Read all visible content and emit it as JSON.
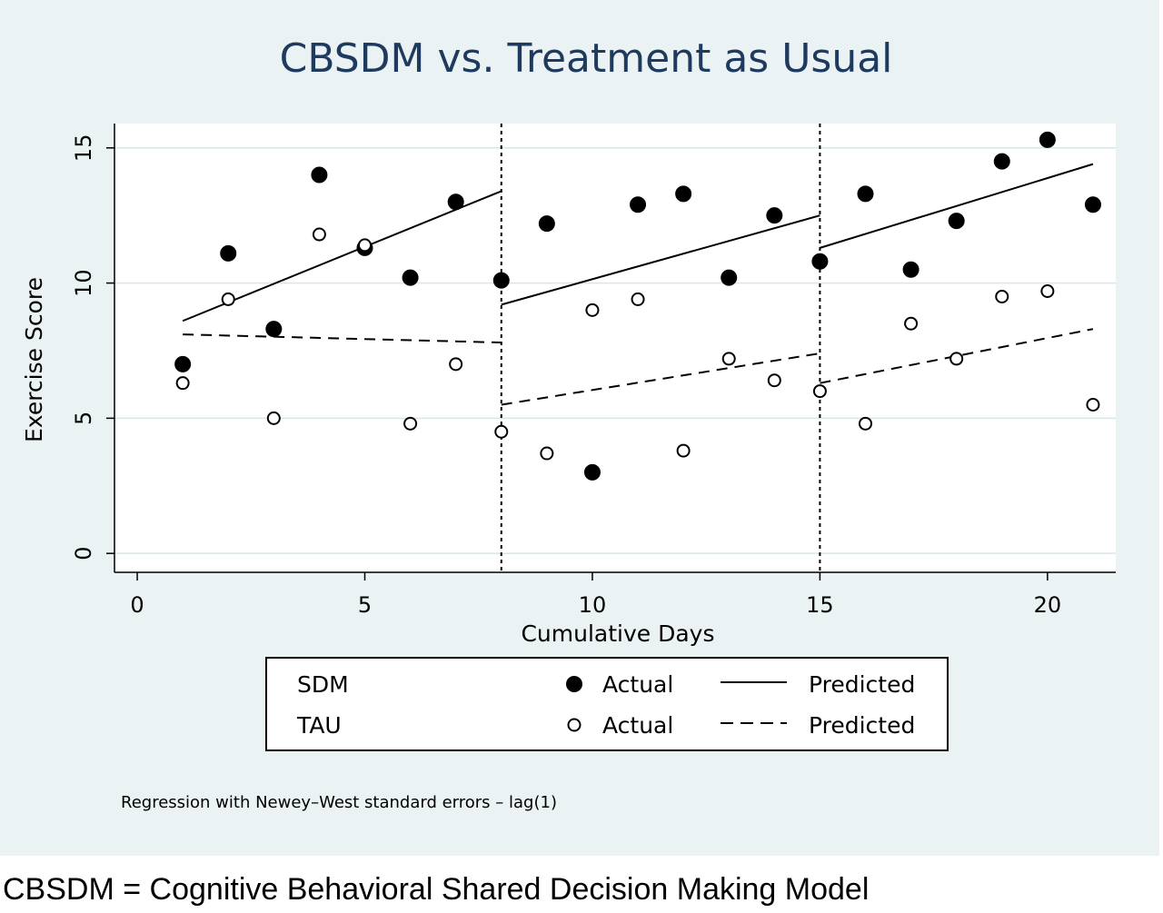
{
  "chart_data": {
    "type": "scatter",
    "title": "CBSDM vs. Treatment as Usual",
    "xlabel": "Cumulative Days",
    "ylabel": "Exercise Score",
    "xlim": [
      -0.5,
      21.5
    ],
    "ylim": [
      -0.7,
      15.9
    ],
    "xticks": [
      0,
      5,
      10,
      15,
      20
    ],
    "yticks": [
      0,
      5,
      10,
      15
    ],
    "grid": "horizontal",
    "phase_boundaries": [
      8,
      15
    ],
    "series": [
      {
        "name": "SDM",
        "kind": "Actual",
        "marker": "filled",
        "x": [
          1,
          2,
          3,
          4,
          5,
          6,
          7,
          8,
          9,
          10,
          11,
          12,
          13,
          14,
          15,
          16,
          17,
          18,
          19,
          20,
          21
        ],
        "y": [
          7.0,
          11.1,
          8.3,
          14.0,
          11.3,
          10.2,
          13.0,
          10.1,
          12.2,
          3.0,
          12.9,
          13.3,
          10.2,
          12.5,
          10.8,
          13.3,
          10.5,
          12.3,
          14.5,
          15.3,
          12.9
        ]
      },
      {
        "name": "TAU",
        "kind": "Actual",
        "marker": "hollow",
        "x": [
          1,
          2,
          3,
          4,
          5,
          6,
          7,
          8,
          9,
          10,
          11,
          12,
          13,
          14,
          15,
          16,
          17,
          18,
          19,
          20,
          21
        ],
        "y": [
          6.3,
          9.4,
          5.0,
          11.8,
          11.4,
          4.8,
          7.0,
          4.5,
          3.7,
          9.0,
          9.4,
          3.8,
          7.2,
          6.4,
          6.0,
          4.8,
          8.5,
          7.2,
          9.5,
          9.7,
          5.5
        ]
      },
      {
        "name": "SDM",
        "kind": "Predicted",
        "line": "solid",
        "segments": [
          [
            [
              1,
              8.6
            ],
            [
              8,
              13.4
            ]
          ],
          [
            [
              8,
              9.2
            ],
            [
              15,
              12.5
            ]
          ],
          [
            [
              15,
              11.3
            ],
            [
              21,
              14.4
            ]
          ]
        ]
      },
      {
        "name": "TAU",
        "kind": "Predicted",
        "line": "dashed",
        "segments": [
          [
            [
              1,
              8.1
            ],
            [
              8,
              7.8
            ]
          ],
          [
            [
              8,
              5.5
            ],
            [
              15,
              7.4
            ]
          ],
          [
            [
              15,
              6.3
            ],
            [
              21,
              8.3
            ]
          ]
        ]
      }
    ],
    "legend": {
      "placement": "bottom",
      "rows": [
        {
          "group": "SDM",
          "actual_label": "Actual",
          "predicted_label": "Predicted"
        },
        {
          "group": "TAU",
          "actual_label": "Actual",
          "predicted_label": "Predicted"
        }
      ]
    },
    "note": "Regression with Newey–West standard errors – lag(1)"
  },
  "caption": "CBSDM = Cognitive Behavioral Shared Decision Making Model",
  "colors": {
    "panel": "#eaf2f3",
    "plot": "#ffffff",
    "title": "#1e3a5f",
    "ink": "#000000",
    "grid": "#d6e7ea"
  }
}
